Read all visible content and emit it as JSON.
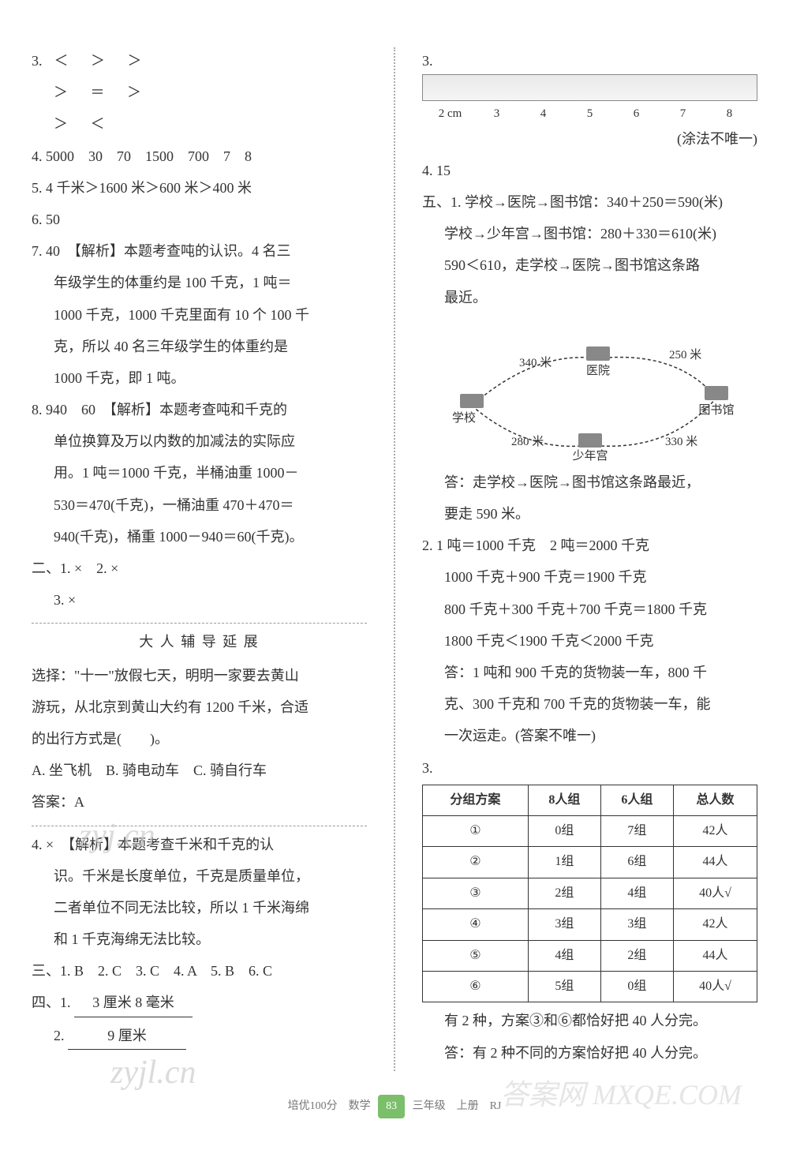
{
  "left": {
    "q3": {
      "row1": [
        "＜",
        "＞",
        "＞"
      ],
      "row2": [
        "＞",
        "＝",
        "＞"
      ],
      "row3": [
        "＞",
        "＜"
      ]
    },
    "q4": "4. 5000　30　70　1500　700　7　8",
    "q5": "5. 4 千米＞1600 米＞600 米＞400 米",
    "q6": "6. 50",
    "q7_head": "7. 40　【解析】本题考查吨的认识。4 名三",
    "q7_l2": "年级学生的体重约是 100 千克，1 吨＝",
    "q7_l3": "1000 千克，1000 千克里面有 10 个 100 千",
    "q7_l4": "克，所以 40 名三年级学生的体重约是",
    "q7_l5": "1000 千克，即 1 吨。",
    "q8_head": "8. 940　60　【解析】本题考查吨和千克的",
    "q8_l2": "单位换算及万以内数的加减法的实际应",
    "q8_l3": "用。1 吨＝1000 千克，半桶油重 1000－",
    "q8_l4": "530＝470(千克)，一桶油重 470＋470＝",
    "q8_l5": "940(千克)，桶重 1000－940＝60(千克)。",
    "two": "二、1. ×　2. ×",
    "two_3": "3. ×",
    "ext_title": "大 人 辅 导 延 展",
    "ext_l1": "选择：\"十一\"放假七天，明明一家要去黄山",
    "ext_l2": "游玩，从北京到黄山大约有 1200 千米，合适",
    "ext_l3": "的出行方式是(　　)。",
    "ext_l4": "A. 坐飞机　B. 骑电动车　C. 骑自行车",
    "ext_l5": "答案：A",
    "q4x_head": "4. ×　【解析】本题考查千米和千克的认",
    "q4x_l2": "识。千米是长度单位，千克是质量单位，",
    "q4x_l3": "二者单位不同无法比较，所以 1 千米海绵",
    "q4x_l4": "和 1 千克海绵无法比较。",
    "three": "三、1. B　2. C　3. C　4. A　5. B　6. C",
    "four_1_label": "四、1.",
    "four_1_value": "3 厘米 8 毫米",
    "four_2_label": "2.",
    "four_2_value": "9 厘米"
  },
  "right": {
    "q3_label": "3.",
    "ruler_ticks": [
      "2 cm",
      "3",
      "4",
      "5",
      "6",
      "7",
      "8"
    ],
    "ruler_note": "(涂法不唯一)",
    "q4": "4. 15",
    "five_head": "五、1. 学校→医院→图书馆：340＋250＝590(米)",
    "five_l2": "学校→少年宫→图书馆：280＋330＝610(米)",
    "five_l3": "590＜610，走学校→医院→图书馆这条路",
    "five_l4": "最近。",
    "map": {
      "hospital": "医院",
      "library": "图书馆",
      "school": "学校",
      "palace": "少年宫",
      "d_sh": "340 米",
      "d_hl": "250 米",
      "d_sp": "280 米",
      "d_pl": "330 米"
    },
    "five_ans1": "答：走学校→医院→图书馆这条路最近，",
    "five_ans2": "要走 590 米。",
    "q2_l1": "2. 1 吨＝1000 千克　2 吨＝2000 千克",
    "q2_l2": "1000 千克＋900 千克＝1900 千克",
    "q2_l3": "800 千克＋300 千克＋700 千克＝1800 千克",
    "q2_l4": "1800 千克＜1900 千克＜2000 千克",
    "q2_l5": "答：1 吨和 900 千克的货物装一车，800 千",
    "q2_l6": "克、300 千克和 700 千克的货物装一车，能",
    "q2_l7": "一次运走。(答案不唯一)",
    "q3t_label": "3.",
    "table": {
      "headers": [
        "分组方案",
        "8人组",
        "6人组",
        "总人数"
      ],
      "rows": [
        [
          "①",
          "0组",
          "7组",
          "42人"
        ],
        [
          "②",
          "1组",
          "6组",
          "44人"
        ],
        [
          "③",
          "2组",
          "4组",
          "40人√"
        ],
        [
          "④",
          "3组",
          "3组",
          "42人"
        ],
        [
          "⑤",
          "4组",
          "2组",
          "44人"
        ],
        [
          "⑥",
          "5组",
          "0组",
          "40人√"
        ]
      ]
    },
    "q3t_l1": "有 2 种，方案③和⑥都恰好把 40 人分完。",
    "q3t_l2": "答：有 2 种不同的方案恰好把 40 人分完。"
  },
  "footer": {
    "left": "培优100分　数学",
    "page": "83",
    "right": "三年级　上册　RJ"
  },
  "watermarks": {
    "w1": "zyj.cn",
    "w2": "zyjl.cn",
    "w3": "答案网 MXQE.COM"
  }
}
